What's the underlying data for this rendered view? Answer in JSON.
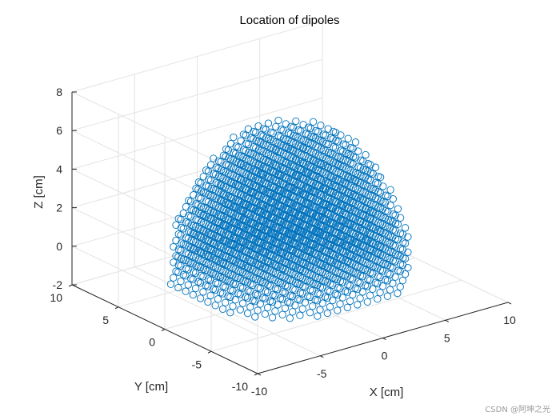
{
  "chart_data": {
    "type": "scatter3d",
    "title": "Location of dipoles",
    "xlabel": "X [cm]",
    "ylabel": "Y [cm]",
    "zlabel": "Z [cm]",
    "xlim": [
      -10,
      10
    ],
    "ylim": [
      -10,
      10
    ],
    "zlim": [
      -2,
      8
    ],
    "xticks": [
      "-10",
      "-5",
      "0",
      "5",
      "10"
    ],
    "yticks": [
      "-10",
      "-5",
      "0",
      "5",
      "10"
    ],
    "zticks": [
      "-2",
      "0",
      "2",
      "4",
      "6",
      "8"
    ],
    "grid": true,
    "box": "open",
    "marker": "o",
    "marker_color": "#0072BD",
    "series": [
      {
        "description": "Dipole grid filling an upper hemisphere",
        "shape": "hemisphere",
        "center": [
          0,
          0,
          -1
        ],
        "radius": 7.8,
        "spacing": 0.8,
        "z_range": [
          -1,
          7
        ]
      }
    ]
  },
  "watermark": "CSDN @阿坤之光"
}
